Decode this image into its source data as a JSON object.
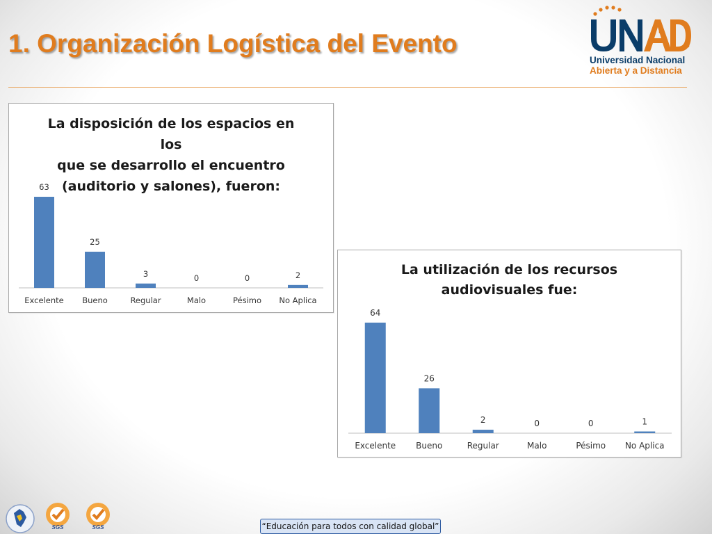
{
  "slide": {
    "title": "1.  Organización Logística del Evento",
    "footer": "“Educación para todos con calidad global”"
  },
  "logo": {
    "wordmark": "UNAD",
    "line1": "Universidad Nacional",
    "line2": "Abierta y a Distancia"
  },
  "badges": [
    {
      "icon": "colombia-map-icon"
    },
    {
      "icon": "sgs-certification-icon",
      "label": "SGS"
    },
    {
      "icon": "sgs-certification-icon",
      "label": "SGS"
    }
  ],
  "colors": {
    "title": "#e07c1e",
    "bar": "#4f81bd",
    "brand_blue": "#0b3d69",
    "brand_orange": "#e07c1e"
  },
  "chart_data": [
    {
      "type": "bar",
      "title_lines": [
        "La disposición de los espacios en los",
        "que se desarrollo el encuentro",
        "(auditorio y salones), fueron:"
      ],
      "categories": [
        "Excelente",
        "Bueno",
        "Regular",
        "Malo",
        "Pésimo",
        "No Aplica"
      ],
      "values": [
        63,
        25,
        3,
        0,
        0,
        2
      ],
      "data_labels": [
        "63",
        "25",
        "3",
        "0",
        "0",
        "2"
      ],
      "grid": false,
      "legend": "none"
    },
    {
      "type": "bar",
      "title_lines": [
        "La utilización de los recursos",
        "audiovisuales fue:"
      ],
      "categories": [
        "Excelente",
        "Bueno",
        "Regular",
        "Malo",
        "Pésimo",
        "No Aplica"
      ],
      "values": [
        64,
        26,
        2,
        0,
        0,
        1
      ],
      "data_labels": [
        "64",
        "26",
        "2",
        "0",
        "0",
        "1"
      ],
      "grid": false,
      "legend": "none"
    }
  ]
}
